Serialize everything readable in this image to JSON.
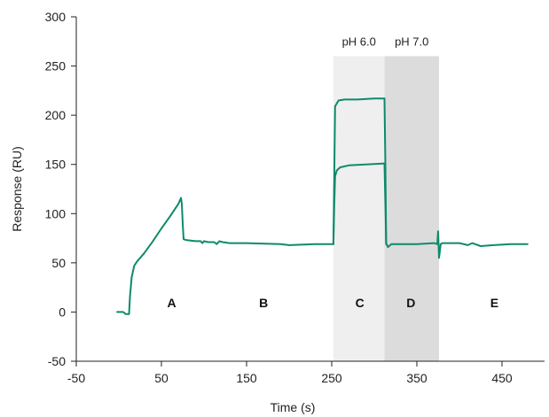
{
  "chart_data": {
    "type": "line",
    "title": "",
    "xlabel": "Time (s)",
    "ylabel": "Response (RU)",
    "xlim": [
      -50,
      500
    ],
    "ylim": [
      -50,
      300
    ],
    "xticks": [
      -50,
      50,
      150,
      250,
      350,
      450
    ],
    "yticks": [
      -50,
      0,
      50,
      100,
      150,
      200,
      250,
      300
    ],
    "grid": false,
    "legend": "none",
    "colors": {
      "line": "#0e8a6a",
      "band_ph6": "#efefef",
      "band_ph7": "#dcdcdc"
    },
    "bands": [
      {
        "label": "pH 6.0",
        "x_start": 252,
        "x_end": 312
      },
      {
        "label": "pH 7.0",
        "x_start": 312,
        "x_end": 376
      }
    ],
    "region_labels": [
      {
        "text": "A",
        "x": 62,
        "y": 5
      },
      {
        "text": "B",
        "x": 170,
        "y": 5
      },
      {
        "text": "C",
        "x": 283,
        "y": 5
      },
      {
        "text": "D",
        "x": 343,
        "y": 5
      },
      {
        "text": "E",
        "x": 441,
        "y": 5
      }
    ],
    "series": [
      {
        "x": [
          -2,
          5,
          8,
          12,
          13,
          15,
          18,
          22,
          26,
          30,
          40,
          50,
          60,
          70,
          73,
          74,
          75,
          76,
          80,
          90,
          96,
          98,
          100,
          105,
          112,
          115,
          118,
          122,
          130,
          150,
          190,
          200,
          230,
          252
        ],
        "y": [
          0,
          0,
          -2,
          -2,
          15,
          35,
          47,
          52,
          56,
          60,
          72,
          85,
          97,
          110,
          116,
          110,
          90,
          74,
          73,
          72,
          72,
          70,
          72,
          71,
          71,
          69,
          72,
          71,
          70,
          70,
          69,
          68,
          69,
          69
        ]
      },
      {
        "x": [
          252,
          253,
          254,
          258,
          265,
          280,
          300,
          312,
          313,
          314,
          316,
          320,
          350,
          370,
          374,
          375,
          376,
          378,
          380,
          400,
          410,
          415,
          425,
          440,
          460,
          480
        ],
        "y": [
          69,
          140,
          209,
          215,
          216,
          216,
          217,
          217,
          150,
          70,
          66,
          69,
          69,
          70,
          69,
          82,
          55,
          69,
          70,
          70,
          68,
          70,
          67,
          68,
          69,
          69
        ]
      },
      {
        "x": [
          252,
          253,
          254,
          256,
          260,
          270,
          290,
          312,
          313,
          314
        ],
        "y": [
          69,
          110,
          138,
          144,
          147,
          149,
          150,
          151,
          110,
          69
        ]
      }
    ]
  }
}
